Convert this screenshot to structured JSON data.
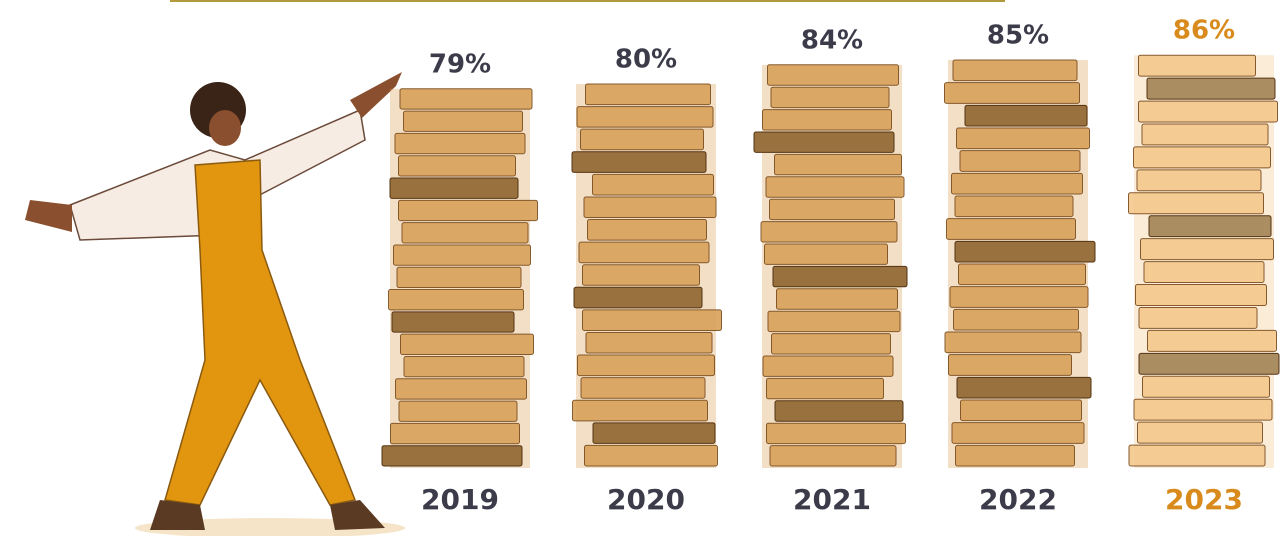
{
  "chart_data": {
    "type": "book-stack",
    "categories": [
      "2019",
      "2020",
      "2021",
      "2022",
      "2023"
    ],
    "values": [
      79,
      80,
      84,
      85,
      86
    ],
    "value_labels": [
      "79%",
      "80%",
      "84%",
      "85%",
      "86%"
    ],
    "colors": [
      "#d9a25a",
      "#d9a25a",
      "#d9a25a",
      "#d9a25a",
      "#f4c98c"
    ],
    "label_colors": [
      "#3b3b4a",
      "#3b3b4a",
      "#3b3b4a",
      "#3b3b4a",
      "#d98a1c"
    ]
  }
}
